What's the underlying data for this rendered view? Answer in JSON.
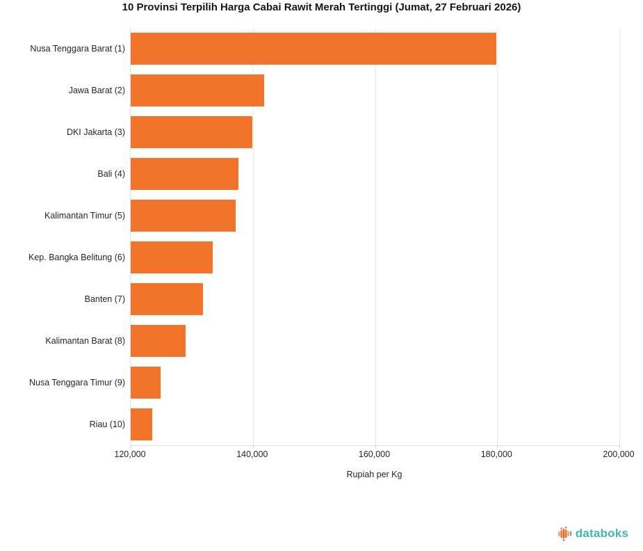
{
  "chart_data": {
    "type": "bar",
    "orientation": "horizontal",
    "title": "10 Provinsi Terpilih Harga Cabai Rawit Merah Tertinggi (Jumat, 27 Februari 2026)",
    "categories": [
      "Nusa Tenggara Barat (1)",
      "Jawa Barat (2)",
      "DKI Jakarta (3)",
      "Bali (4)",
      "Kalimantan Timur (5)",
      "Kep. Bangka Belitung (6)",
      "Banten (7)",
      "Kalimantan Barat (8)",
      "Nusa Tenggara Timur (9)",
      "Riau (10)"
    ],
    "values": [
      179850,
      141800,
      139900,
      137650,
      137200,
      133450,
      131800,
      128950,
      124900,
      123500
    ],
    "xlabel": "Rupiah per Kg",
    "ylabel": "",
    "xlim": [
      120000,
      200000
    ],
    "x_ticks": [
      120000,
      140000,
      160000,
      180000,
      200000
    ],
    "x_tick_labels": [
      "120,000",
      "140,000",
      "160,000",
      "180,000",
      "200,000"
    ],
    "bar_color": "#F2742B",
    "gridline_color": "#EBEBEB",
    "grid": true,
    "legend": false
  },
  "branding": {
    "logo_text": "databoks",
    "logo_teal": "#41B7AE",
    "logo_orange": "#F2742B",
    "logo_salmon": "#F7A173"
  }
}
